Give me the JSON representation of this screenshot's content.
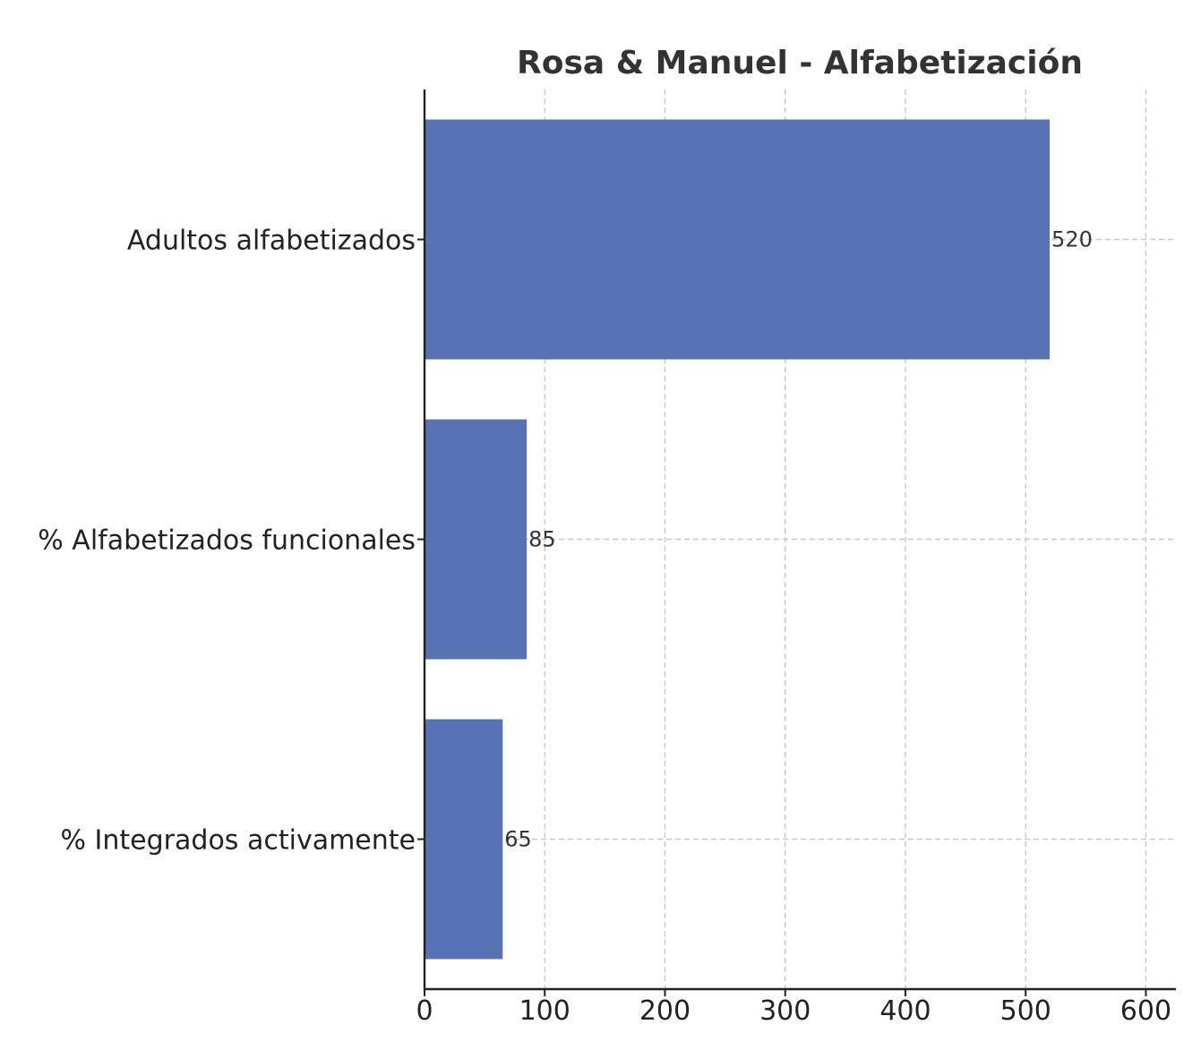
{
  "chart_data": {
    "type": "bar",
    "orientation": "horizontal",
    "title": "Rosa & Manuel - Alfabetización",
    "xlabel": "",
    "ylabel": "",
    "categories": [
      "Adultos alfabetizados",
      "% Alfabetizados funcionales",
      "% Integrados activamente"
    ],
    "values": [
      520,
      85,
      65
    ],
    "data_labels": [
      "520",
      "85",
      "65"
    ],
    "xlim": [
      0,
      625
    ],
    "xticks": [
      0,
      100,
      200,
      300,
      400,
      500,
      600
    ],
    "xtick_labels": [
      "0",
      "100",
      "200",
      "300",
      "400",
      "500",
      "600"
    ],
    "grid": true,
    "bar_color": "#5873b5"
  }
}
